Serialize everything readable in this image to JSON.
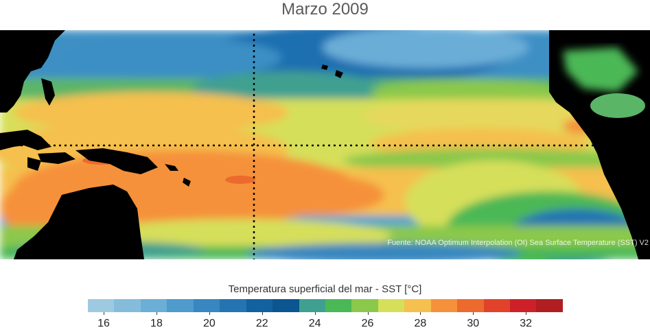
{
  "title": "Marzo 2009",
  "source": "Fuente: NOAA Optimum Interpolation (OI) Sea Surface Temperature (SST) V2",
  "colorbar": {
    "label": "Temperatura superficial del mar - SST  [°C]",
    "colors": [
      "#9ecae1",
      "#85bcdc",
      "#6baed6",
      "#4f9bcb",
      "#3887c0",
      "#2474b2",
      "#11629f",
      "#0b5591",
      "#3fa090",
      "#4bb856",
      "#8bc84b",
      "#d6df5a",
      "#f5c04e",
      "#f5913a",
      "#ec6a2e",
      "#e0432a",
      "#cd2028",
      "#b01e22"
    ],
    "ticks": [
      "16",
      "18",
      "20",
      "22",
      "24",
      "26",
      "28",
      "30",
      "32"
    ]
  }
}
